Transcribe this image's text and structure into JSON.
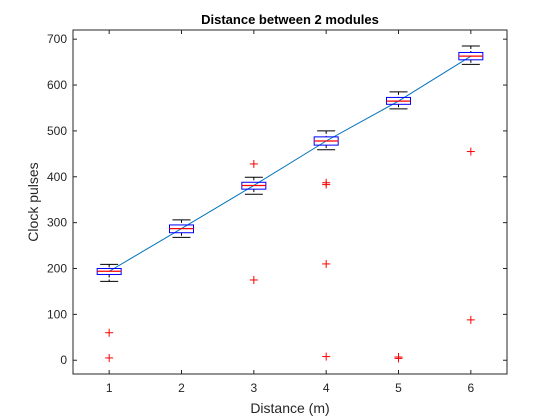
{
  "chart_data": {
    "type": "boxplot",
    "title": "Distance between 2 modules",
    "xlabel": "Distance (m)",
    "ylabel": "Clock pulses",
    "xlim": [
      0.5,
      6.5
    ],
    "ylim": [
      -30,
      720
    ],
    "xticks": [
      1,
      2,
      3,
      4,
      5,
      6
    ],
    "yticks": [
      0,
      100,
      200,
      300,
      400,
      500,
      600,
      700
    ],
    "grid": false,
    "legend": "none",
    "categories": [
      "1",
      "2",
      "3",
      "4",
      "5",
      "6"
    ],
    "boxes": [
      {
        "x": 1,
        "whisker_low": 172,
        "q1": 187,
        "median": 194,
        "q3": 200,
        "whisker_high": 209
      },
      {
        "x": 2,
        "whisker_low": 268,
        "q1": 278,
        "median": 287,
        "q3": 295,
        "whisker_high": 306
      },
      {
        "x": 3,
        "whisker_low": 362,
        "q1": 373,
        "median": 381,
        "q3": 388,
        "whisker_high": 399
      },
      {
        "x": 4,
        "whisker_low": 459,
        "q1": 469,
        "median": 478,
        "q3": 487,
        "whisker_high": 500
      },
      {
        "x": 5,
        "whisker_low": 548,
        "q1": 558,
        "median": 565,
        "q3": 573,
        "whisker_high": 585
      },
      {
        "x": 6,
        "whisker_low": 645,
        "q1": 655,
        "median": 663,
        "q3": 671,
        "whisker_high": 685
      }
    ],
    "outliers": [
      {
        "x": 1,
        "y": 60
      },
      {
        "x": 1,
        "y": 5
      },
      {
        "x": 3,
        "y": 428
      },
      {
        "x": 3,
        "y": 175
      },
      {
        "x": 4,
        "y": 387
      },
      {
        "x": 4,
        "y": 383
      },
      {
        "x": 4,
        "y": 210
      },
      {
        "x": 4,
        "y": 8
      },
      {
        "x": 5,
        "y": 7
      },
      {
        "x": 5,
        "y": 4
      },
      {
        "x": 6,
        "y": 455
      },
      {
        "x": 6,
        "y": 88
      }
    ],
    "trend_line": {
      "x": [
        1,
        2,
        3,
        4,
        5,
        6
      ],
      "y": [
        194,
        287,
        381,
        478,
        565,
        663
      ]
    },
    "colors": {
      "box": "#0000ff",
      "median": "#ff0000",
      "whisker": "#000000",
      "outlier": "#ff0000",
      "trend_line": "#0072bd",
      "axes": "#262626"
    }
  }
}
